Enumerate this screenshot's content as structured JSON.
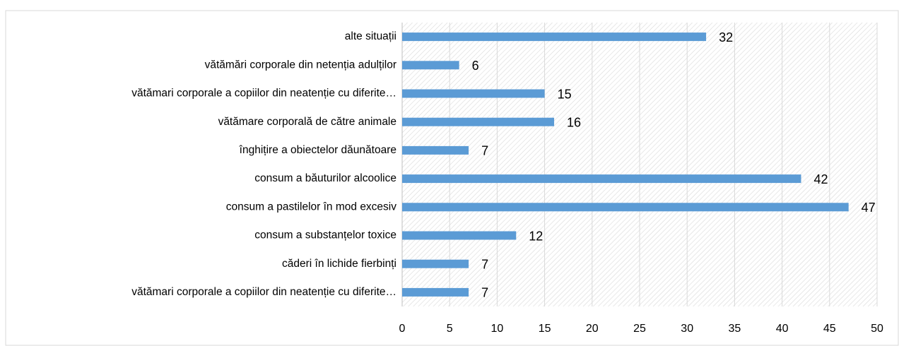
{
  "chart_data": {
    "type": "bar",
    "orientation": "horizontal",
    "categories": [
      "alte situații",
      "vătămări corporale din netenția adulților",
      "vătămari corporale a copiilor din neatenție cu diferite…",
      "vătămare corporală de către animale",
      "înghițire a obiectelor dăunătoare",
      "consum a băuturilor alcoolice",
      "consum a pastilelor în mod excesiv",
      "consum a substanțelor toxice",
      "căderi în lichide fierbinți",
      "vătămari corporale a copiilor din neatenție cu diferite…"
    ],
    "values": [
      32,
      6,
      15,
      16,
      7,
      42,
      47,
      12,
      7,
      7
    ],
    "color": "#5b9bd5",
    "xlim": [
      0,
      50
    ],
    "xticks": [
      0,
      5,
      10,
      15,
      20,
      25,
      30,
      35,
      40,
      45,
      50
    ],
    "grid": true
  }
}
